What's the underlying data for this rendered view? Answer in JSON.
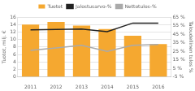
{
  "chart_data": {
    "type": "bar",
    "categories": [
      "2011",
      "2012",
      "2013",
      "2014",
      "2015",
      "2016"
    ],
    "series": [
      {
        "name": "Tuotot",
        "type": "bar",
        "color": "#f5a830",
        "values": [
          14.0,
          14.7,
          13.7,
          12.8,
          11.0,
          8.8
        ]
      },
      {
        "name": "Jalostusarvo-%",
        "type": "line",
        "axis": "y2",
        "color": "#222222",
        "values": [
          50,
          50.5,
          51,
          48,
          58,
          58
        ]
      },
      {
        "name": "Nettotulos-%",
        "type": "line",
        "axis": "y2",
        "color": "#aaaaaa",
        "values": [
          26,
          29,
          32,
          25,
          32,
          33
        ]
      }
    ],
    "ylabel": "Tuotot, milj. €",
    "y2label": "Taloudellinen tulos %",
    "ylim": [
      0,
      16
    ],
    "yticks": [
      0,
      2,
      4,
      6,
      8,
      10,
      12,
      14,
      16
    ],
    "y2lim": [
      -5,
      65
    ],
    "y2ticks": [
      {
        "value": -5,
        "label": "-5 %"
      },
      {
        "value": 5,
        "label": "5 %"
      },
      {
        "value": 15,
        "label": "15 %"
      },
      {
        "value": 25,
        "label": "25 %"
      },
      {
        "value": 35,
        "label": "35 %"
      },
      {
        "value": 45,
        "label": "45 %"
      },
      {
        "value": 55,
        "label": "55 %"
      },
      {
        "value": 65,
        "label": "65 %"
      }
    ],
    "grid": true,
    "legend": "top"
  }
}
